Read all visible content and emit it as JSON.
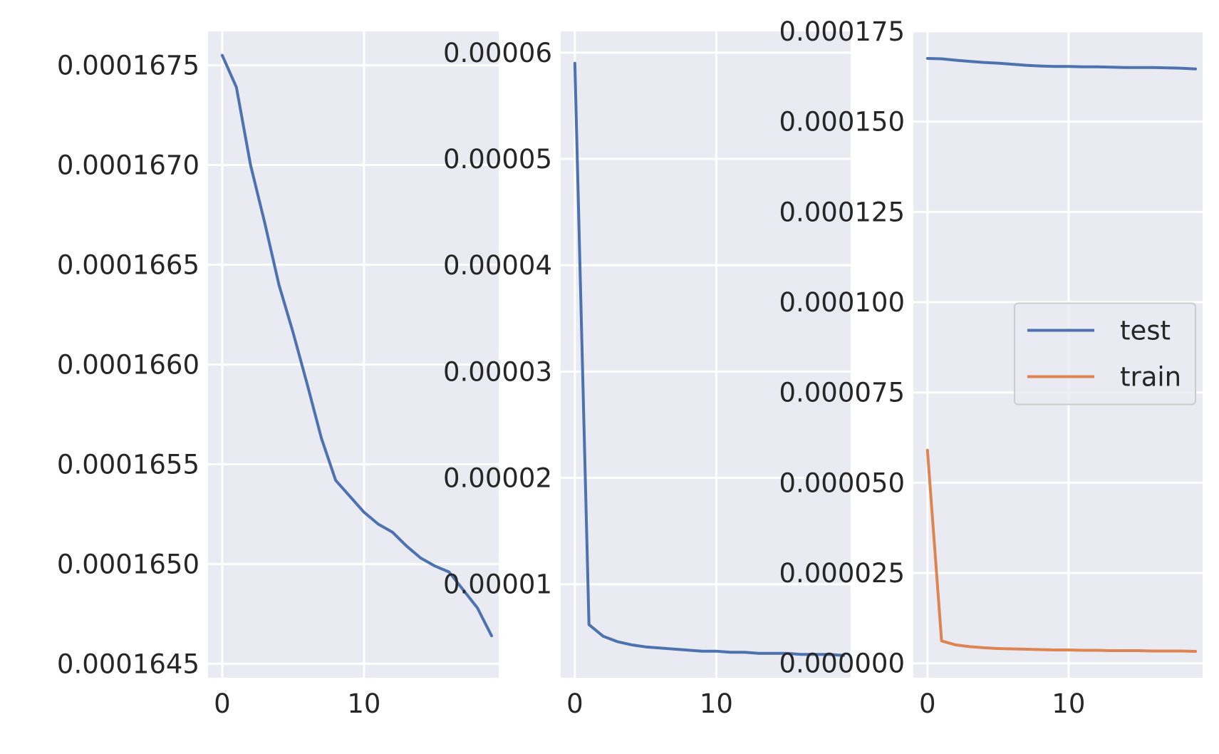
{
  "chart_data": [
    {
      "type": "line",
      "title": "",
      "xlabel": "",
      "ylabel": "",
      "xlim": [
        -1,
        19.5
      ],
      "ylim": [
        0.00016443,
        0.00016767
      ],
      "grid": true,
      "x_ticks": [
        0,
        10
      ],
      "x_tick_labels": [
        "0",
        "10"
      ],
      "y_ticks": [
        0.0001645,
        0.000165,
        0.0001655,
        0.000166,
        0.0001665,
        0.000167,
        0.0001675
      ],
      "y_tick_labels": [
        "0.0001645",
        "0.0001650",
        "0.0001655",
        "0.0001660",
        "0.0001665",
        "0.0001670",
        "0.0001675"
      ],
      "series": [
        {
          "color": "#4c72b0",
          "x": [
            0,
            1,
            2,
            3,
            4,
            5,
            6,
            7,
            8,
            9,
            10,
            11,
            12,
            13,
            14,
            15,
            16,
            17,
            18,
            19
          ],
          "y": [
            0.00016755,
            0.00016739,
            0.000167,
            0.00016671,
            0.0001664,
            0.00016616,
            0.0001659,
            0.00016563,
            0.00016542,
            0.00016534,
            0.00016526,
            0.0001652,
            0.00016516,
            0.00016509,
            0.00016503,
            0.00016499,
            0.00016496,
            0.00016487,
            0.00016478,
            0.00016464
          ]
        }
      ]
    },
    {
      "type": "line",
      "title": "",
      "xlabel": "",
      "ylabel": "",
      "xlim": [
        -1,
        19.5
      ],
      "ylim": [
        1.2e-06,
        6.2e-05
      ],
      "grid": true,
      "x_ticks": [
        0,
        10
      ],
      "x_tick_labels": [
        "0",
        "10"
      ],
      "y_ticks": [
        1e-05,
        2e-05,
        3e-05,
        4e-05,
        5e-05,
        6e-05
      ],
      "y_tick_labels": [
        "0.00001",
        "0.00002",
        "0.00003",
        "0.00004",
        "0.00005",
        "0.00006"
      ],
      "series": [
        {
          "color": "#4c72b0",
          "x": [
            0,
            1,
            2,
            3,
            4,
            5,
            6,
            7,
            8,
            9,
            10,
            11,
            12,
            13,
            14,
            15,
            16,
            17,
            18,
            19
          ],
          "y": [
            5.9e-05,
            6.2e-06,
            5.1e-06,
            4.6e-06,
            4.3e-06,
            4.1e-06,
            4e-06,
            3.9e-06,
            3.8e-06,
            3.7e-06,
            3.7e-06,
            3.6e-06,
            3.6e-06,
            3.5e-06,
            3.5e-06,
            3.5e-06,
            3.4e-06,
            3.4e-06,
            3.4e-06,
            3.3e-06
          ]
        }
      ]
    },
    {
      "type": "line",
      "title": "",
      "xlabel": "",
      "ylabel": "",
      "xlim": [
        -1,
        19.5
      ],
      "ylim": [
        -4e-06,
        0.000175
      ],
      "grid": true,
      "x_ticks": [
        0,
        10
      ],
      "x_tick_labels": [
        "0",
        "10"
      ],
      "y_ticks": [
        0.0,
        2.5e-05,
        5e-05,
        7.5e-05,
        0.0001,
        0.000125,
        0.00015,
        0.000175
      ],
      "y_tick_labels": [
        "0.000000",
        "0.000025",
        "0.000050",
        "0.000075",
        "0.000100",
        "0.000125",
        "0.000150",
        "0.000175"
      ],
      "legend": {
        "placement": "center-right",
        "entries": [
          "test",
          "train"
        ]
      },
      "series": [
        {
          "name": "test",
          "color": "#4c72b0",
          "x": [
            0,
            1,
            2,
            3,
            4,
            5,
            6,
            7,
            8,
            9,
            10,
            11,
            12,
            13,
            14,
            15,
            16,
            17,
            18,
            19
          ],
          "y": [
            0.0001675,
            0.0001674,
            0.000167,
            0.0001667,
            0.0001664,
            0.0001662,
            0.0001659,
            0.0001656,
            0.0001654,
            0.0001653,
            0.0001653,
            0.0001652,
            0.0001652,
            0.0001651,
            0.000165,
            0.000165,
            0.000165,
            0.0001649,
            0.0001648,
            0.0001646
          ]
        },
        {
          "name": "train",
          "color": "#dd8452",
          "x": [
            0,
            1,
            2,
            3,
            4,
            5,
            6,
            7,
            8,
            9,
            10,
            11,
            12,
            13,
            14,
            15,
            16,
            17,
            18,
            19
          ],
          "y": [
            5.9e-05,
            6.2e-06,
            5.1e-06,
            4.6e-06,
            4.3e-06,
            4.1e-06,
            4e-06,
            3.9e-06,
            3.8e-06,
            3.7e-06,
            3.7e-06,
            3.6e-06,
            3.6e-06,
            3.5e-06,
            3.5e-06,
            3.5e-06,
            3.4e-06,
            3.4e-06,
            3.4e-06,
            3.3e-06
          ]
        }
      ]
    }
  ]
}
